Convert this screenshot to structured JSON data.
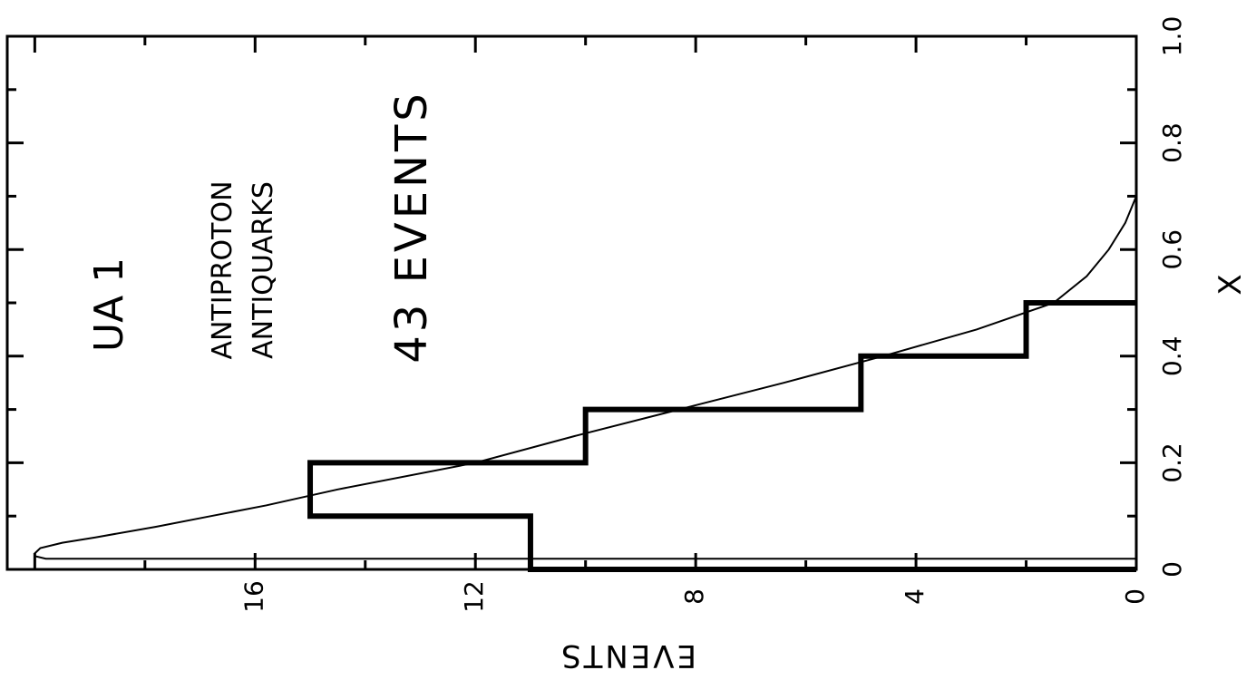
{
  "chart_data": {
    "type": "bar",
    "orientation": "rotated-90",
    "annotations": {
      "experiment": "UA 1",
      "line1": "ANTIPROTON",
      "line2": "ANTIQUARKS",
      "count": "43 EVENTS"
    },
    "xlabel": "X",
    "ylabel": "EVENTS",
    "xlim": [
      0,
      1.0
    ],
    "ylim": [
      0,
      20.5
    ],
    "x_ticks": [
      "0",
      "0.2",
      "0.4",
      "0.6",
      "0.8",
      "1.0"
    ],
    "x_tick_values": [
      0,
      0.2,
      0.4,
      0.6,
      0.8,
      1.0
    ],
    "y_ticks": [
      "0",
      "4",
      "8",
      "12",
      "16"
    ],
    "y_tick_values": [
      0,
      4,
      8,
      12,
      16
    ],
    "histogram": {
      "bin_edges": [
        0.0,
        0.1,
        0.2,
        0.3,
        0.4,
        0.5
      ],
      "counts": [
        11,
        15,
        10,
        5,
        2
      ]
    },
    "curve": {
      "x": [
        0.02,
        0.025,
        0.03,
        0.04,
        0.05,
        0.06,
        0.08,
        0.1,
        0.12,
        0.15,
        0.2,
        0.25,
        0.3,
        0.35,
        0.4,
        0.45,
        0.5,
        0.55,
        0.6,
        0.65,
        0.7
      ],
      "y": [
        19.8,
        20.0,
        20.0,
        19.9,
        19.5,
        18.9,
        17.8,
        16.8,
        15.8,
        14.5,
        12.0,
        10.2,
        8.3,
        6.4,
        4.6,
        2.9,
        1.5,
        0.9,
        0.5,
        0.2,
        0.0
      ]
    },
    "grid": false
  }
}
